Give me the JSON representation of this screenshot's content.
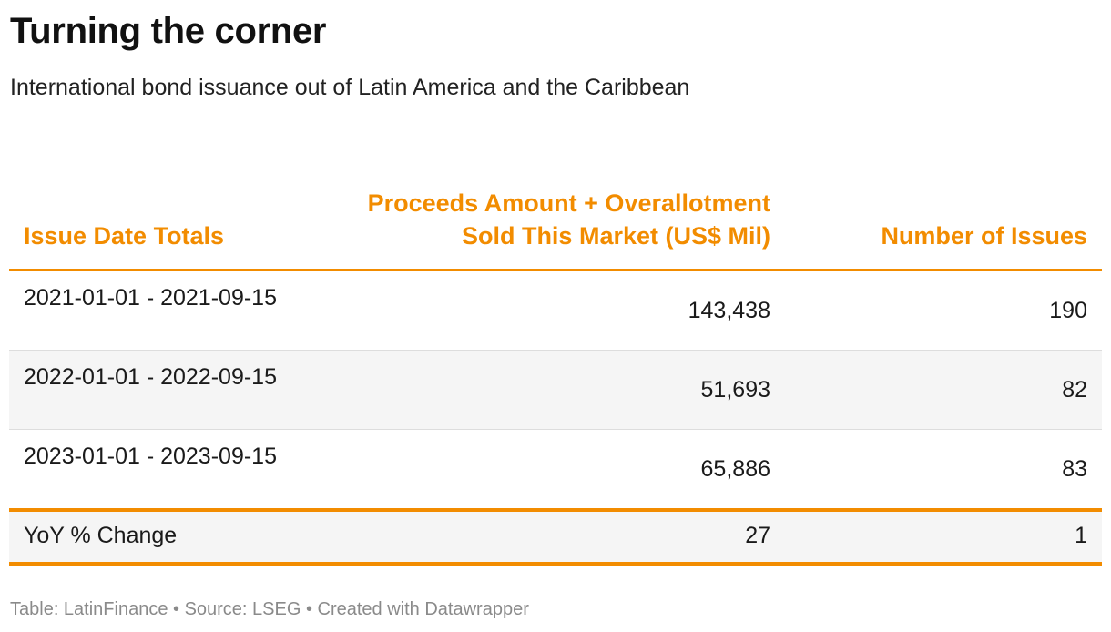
{
  "header": {
    "title": "Turning the corner",
    "subtitle": "International bond issuance out of Latin America and the Caribbean"
  },
  "chart_data": {
    "type": "table",
    "columns": [
      "Issue Date Totals",
      "Proceeds Amount + Overallotment Sold This Market (US$ Mil)",
      "Number of Issues"
    ],
    "rows": [
      {
        "period": "2021-01-01 - 2021-09-15",
        "proceeds": "143,438",
        "issues": "190"
      },
      {
        "period": "2022-01-01 - 2022-09-15",
        "proceeds": "51,693",
        "issues": "82"
      },
      {
        "period": "2023-01-01 - 2023-09-15",
        "proceeds": "65,886",
        "issues": "83"
      }
    ],
    "total": {
      "label": "YoY % Change",
      "proceeds": "27",
      "issues": "1"
    },
    "accent_color": "#f28c00"
  },
  "footer": {
    "text": "Table: LatinFinance • Source: LSEG • Created with Datawrapper"
  }
}
